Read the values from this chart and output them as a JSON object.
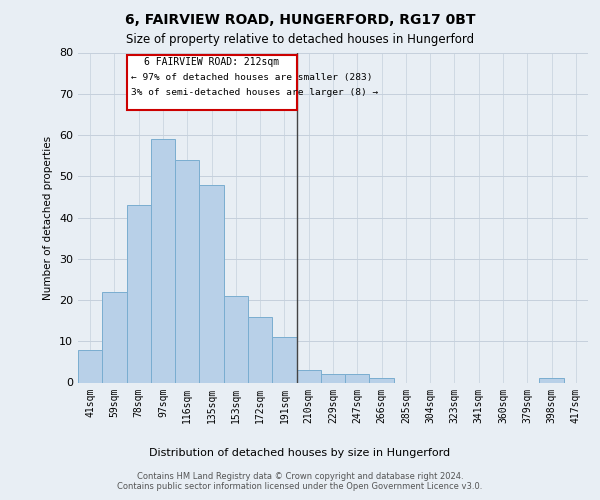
{
  "title": "6, FAIRVIEW ROAD, HUNGERFORD, RG17 0BT",
  "subtitle": "Size of property relative to detached houses in Hungerford",
  "xlabel": "Distribution of detached houses by size in Hungerford",
  "ylabel": "Number of detached properties",
  "categories": [
    "41sqm",
    "59sqm",
    "78sqm",
    "97sqm",
    "116sqm",
    "135sqm",
    "153sqm",
    "172sqm",
    "191sqm",
    "210sqm",
    "229sqm",
    "247sqm",
    "266sqm",
    "285sqm",
    "304sqm",
    "323sqm",
    "341sqm",
    "360sqm",
    "379sqm",
    "398sqm",
    "417sqm"
  ],
  "values": [
    8,
    22,
    43,
    59,
    54,
    48,
    21,
    16,
    11,
    3,
    2,
    2,
    1,
    0,
    0,
    0,
    0,
    0,
    0,
    1,
    0
  ],
  "bar_color": "#b8d0e8",
  "bar_edge_color": "#7aadd0",
  "property_line_index": 9,
  "annotation_title": "6 FAIRVIEW ROAD: 212sqm",
  "annotation_line1": "← 97% of detached houses are smaller (283)",
  "annotation_line2": "3% of semi-detached houses are larger (8) →",
  "annotation_color": "#cc0000",
  "ylim": [
    0,
    80
  ],
  "yticks": [
    0,
    10,
    20,
    30,
    40,
    50,
    60,
    70,
    80
  ],
  "footer": "Contains HM Land Registry data © Crown copyright and database right 2024.\nContains public sector information licensed under the Open Government Licence v3.0.",
  "bg_color": "#e8eef4",
  "grid_color": "#c5d0dc"
}
